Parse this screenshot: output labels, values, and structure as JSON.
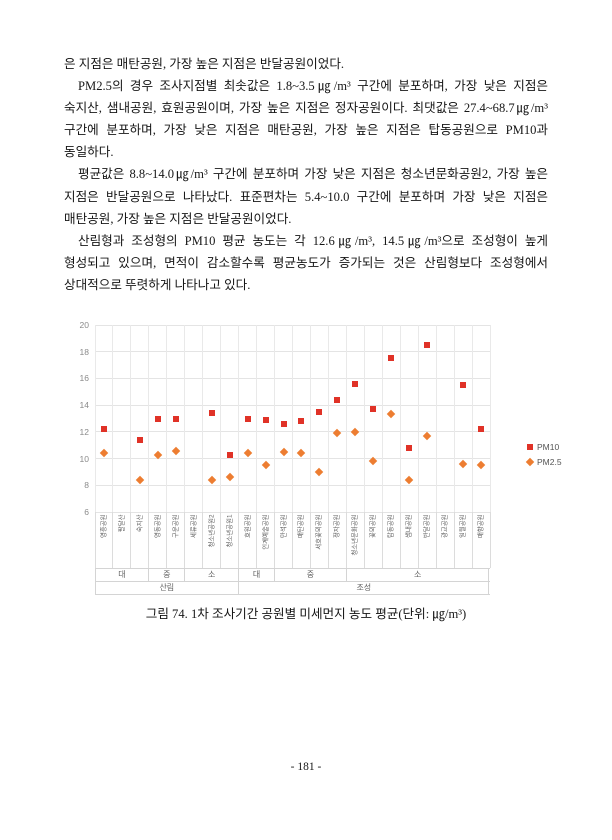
{
  "page": {
    "paragraphs": [
      "은 지점은 매탄공원, 가장 높은 지점은 반달공원이었다.",
      "PM2.5의 경우 조사지점별 최솟값은 1.8~3.5㎍/m³ 구간에 분포하며, 가장 낮은 지점은 숙지산, 샘내공원, 효원공원이며, 가장 높은 지점은 정자공원이다. 최댓값은 27.4~68.7㎍/m³ 구간에 분포하며, 가장 낮은 지점은 매탄공원, 가장 높은 지점은 탑동공원으로 PM10과 동일하다.",
      "평균값은 8.8~14.0㎍/m³ 구간에 분포하며 가장 낮은 지점은 청소년문화공원2, 가장 높은 지점은 반달공원으로 나타났다. 표준편차는 5.4~10.0 구간에 분포하며 가장 낮은 지점은 매탄공원, 가장 높은 지점은 반달공원이었다.",
      "산림형과 조성형의 PM10 평균 농도는 각 12.6㎍/m³, 14.5㎍/m³으로 조성형이 높게 형성되고 있으며, 면적이 감소할수록 평균농도가 증가되는 것은 산림형보다 조성형에서 상대적으로 뚜렷하게 나타나고 있다."
    ],
    "caption": "그림 74. 1차 조사기간 공원별 미세먼지 농도 평균(단위: ㎍/m³)",
    "page_number": "- 181 -"
  },
  "chart_data": {
    "type": "scatter",
    "title": "",
    "xlabel": "",
    "ylabel": "",
    "ylim": [
      6,
      20
    ],
    "yticks": [
      6,
      8,
      10,
      12,
      14,
      16,
      18,
      20
    ],
    "grid": true,
    "legend_position": "right",
    "categories": [
      "영흥공원",
      "팔달산",
      "숙지산",
      "영동공원",
      "구운공원",
      "세류공원",
      "청소년공원2",
      "청소년공원1",
      "효원공원",
      "인계예술공원",
      "만석공원",
      "매탄공원",
      "서호꽃뫼공원",
      "정자공원",
      "청소년문화공원",
      "꽃뫼공원",
      "탑동공원",
      "샘내공원",
      "반달공원",
      "광교공원",
      "일월공원",
      "매향공원"
    ],
    "series": [
      {
        "name": "PM10",
        "marker": "square",
        "color": "#e03227",
        "values": [
          12.2,
          null,
          11.4,
          13.0,
          13.0,
          null,
          13.4,
          10.3,
          13.0,
          12.9,
          12.6,
          12.8,
          13.5,
          14.4,
          15.6,
          13.7,
          17.5,
          10.8,
          18.5,
          null,
          15.5,
          12.2
        ]
      },
      {
        "name": "PM2.5",
        "marker": "diamond",
        "color": "#ed7d31",
        "values": [
          10.4,
          null,
          8.4,
          10.3,
          10.6,
          null,
          8.4,
          8.6,
          10.4,
          9.5,
          10.5,
          10.4,
          9.0,
          11.9,
          12.0,
          9.8,
          13.3,
          8.4,
          11.7,
          null,
          9.6,
          9.5
        ]
      }
    ],
    "size_groups": [
      {
        "label": "대",
        "span": 3
      },
      {
        "label": "중",
        "span": 2
      },
      {
        "label": "소",
        "span": 3
      },
      {
        "label": "대",
        "span": 2
      },
      {
        "label": "중",
        "span": 4
      },
      {
        "label": "소",
        "span": 8
      }
    ],
    "type_groups": [
      {
        "label": "산림",
        "span": 8
      },
      {
        "label": "조성",
        "span": 14
      }
    ]
  }
}
